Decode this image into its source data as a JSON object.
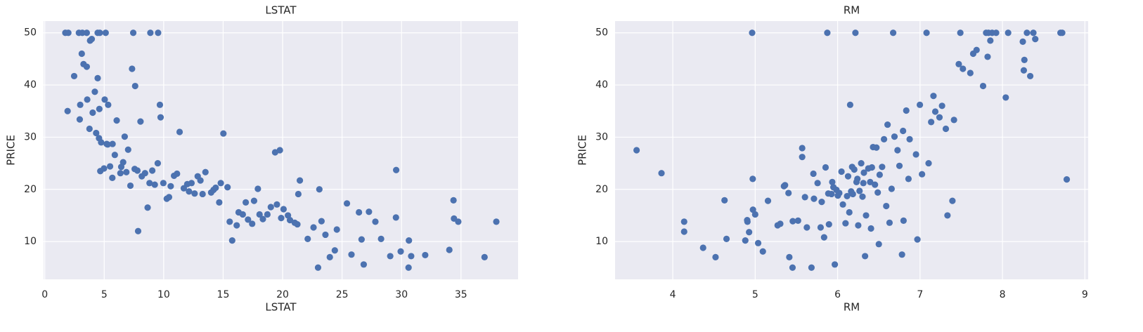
{
  "chart_data": [
    {
      "type": "scatter",
      "title": "LSTAT",
      "x_label": "LSTAT",
      "y_label": "PRICE",
      "color": "#4c72b0",
      "grid": true,
      "xlim": [
        -0.1,
        39.8
      ],
      "ylim": [
        2.75,
        52.25
      ],
      "xticks": [
        0,
        5,
        10,
        15,
        20,
        25,
        30,
        35
      ],
      "yticks": [
        10,
        20,
        30,
        40,
        50
      ],
      "x": [
        1.73,
        1.98,
        2.87,
        3.16,
        3.53,
        4.63,
        4.45,
        5.12,
        7.44,
        8.88,
        9.53,
        1.92,
        2.47,
        2.94,
        2.98,
        3.11,
        3.26,
        3.53,
        3.57,
        3.76,
        3.81,
        3.95,
        4.03,
        4.21,
        4.32,
        4.45,
        4.56,
        4.59,
        4.67,
        4.74,
        4.98,
        5.04,
        5.21,
        5.29,
        5.33,
        5.49,
        5.68,
        5.7,
        5.89,
        6.05,
        6.36,
        6.43,
        6.59,
        6.72,
        6.86,
        7.01,
        7.2,
        7.34,
        7.56,
        7.6,
        7.79,
        7.85,
        8.05,
        8.16,
        8.43,
        8.65,
        8.81,
        9.04,
        9.25,
        9.5,
        9.68,
        9.74,
        9.97,
        10.26,
        10.45,
        10.59,
        10.87,
        11.12,
        11.34,
        11.69,
        11.98,
        12.13,
        12.34,
        12.6,
        12.86,
        13.09,
        13.27,
        13.51,
        13.99,
        14.19,
        14.37,
        14.67,
        14.8,
        15.02,
        15.37,
        15.55,
        15.76,
        16.14,
        16.3,
        16.65,
        16.9,
        17.09,
        17.44,
        17.6,
        17.92,
        18.06,
        18.34,
        18.72,
        19.01,
        19.37,
        19.52,
        19.77,
        19.88,
        20.08,
        20.45,
        20.62,
        21.02,
        21.24,
        21.32,
        21.45,
        22.11,
        22.6,
        22.98,
        23.09,
        23.27,
        23.6,
        23.97,
        24.39,
        24.56,
        25.41,
        25.79,
        26.42,
        26.64,
        26.82,
        27.26,
        27.8,
        28.28,
        29.05,
        29.53,
        29.55,
        29.93,
        30.59,
        30.62,
        30.81,
        31.99,
        34.02,
        34.37,
        34.41,
        34.77,
        36.98,
        37.97
      ],
      "values": [
        50,
        50,
        50,
        50,
        50,
        50,
        50,
        50,
        50,
        50,
        50,
        35,
        41.7,
        33.4,
        36.2,
        46,
        44,
        43.5,
        37.2,
        31.6,
        48.5,
        48.8,
        34.7,
        38.7,
        30.8,
        41.3,
        29.8,
        35.4,
        23.5,
        29,
        24,
        37.2,
        28.7,
        28.6,
        36.2,
        24.4,
        22.2,
        28.7,
        26.6,
        33.2,
        23.1,
        24.3,
        25.2,
        30.1,
        23.3,
        27.6,
        20.7,
        43.1,
        23.9,
        39.8,
        23.6,
        12,
        33,
        22.5,
        23.1,
        16.5,
        21.2,
        23.6,
        20.9,
        25,
        36.2,
        33.8,
        21.2,
        18.2,
        18.5,
        20.6,
        22.6,
        23,
        31,
        20.2,
        21,
        19.6,
        21.2,
        19.2,
        22.5,
        21.7,
        19.1,
        23.3,
        19.4,
        19.9,
        20.3,
        17.5,
        21.2,
        30.7,
        20.4,
        13.8,
        10.2,
        13.1,
        15.6,
        15.2,
        17.5,
        14.2,
        13.4,
        17.8,
        20.1,
        15.2,
        14.3,
        15.2,
        16.6,
        27.1,
        17.1,
        27.5,
        14.5,
        16.2,
        15,
        14.1,
        13.6,
        13.3,
        19.1,
        21.7,
        10.5,
        12.7,
        5,
        20,
        13.9,
        11.3,
        7,
        8.3,
        12.3,
        17.3,
        7.5,
        15.6,
        10.4,
        5.6,
        15.7,
        13.8,
        10.5,
        7.2,
        14.6,
        23.7,
        8.1,
        5,
        10.2,
        7.2,
        7.4,
        8.4,
        17.9,
        14.4,
        13.8,
        7,
        13.8
      ]
    },
    {
      "type": "scatter",
      "title": "RM",
      "x_label": "RM",
      "y_label": "PRICE",
      "color": "#4c72b0",
      "grid": true,
      "xlim": [
        3.3,
        9.04
      ],
      "ylim": [
        2.75,
        52.25
      ],
      "xticks": [
        4,
        5,
        6,
        7,
        8,
        9
      ],
      "yticks": [
        10,
        20,
        30,
        40,
        50
      ],
      "x": [
        3.561,
        3.863,
        4.138,
        4.138,
        4.368,
        4.519,
        4.628,
        4.652,
        4.88,
        4.903,
        4.906,
        4.926,
        4.963,
        4.97,
        4.973,
        5.0,
        5.036,
        5.093,
        5.155,
        5.272,
        5.304,
        5.349,
        5.362,
        5.404,
        5.414,
        5.453,
        5.456,
        5.52,
        5.57,
        5.57,
        5.604,
        5.627,
        5.683,
        5.706,
        5.713,
        5.757,
        5.794,
        5.807,
        5.836,
        5.854,
        5.875,
        5.887,
        5.895,
        5.926,
        5.935,
        5.949,
        5.966,
        5.986,
        6.003,
        6.02,
        6.047,
        6.064,
        6.096,
        6.115,
        6.127,
        6.142,
        6.152,
        6.164,
        6.176,
        6.185,
        6.202,
        6.216,
        6.229,
        6.24,
        6.25,
        6.266,
        6.286,
        6.302,
        6.312,
        6.319,
        6.333,
        6.345,
        6.372,
        6.395,
        6.405,
        6.416,
        6.43,
        6.453,
        6.471,
        6.487,
        6.5,
        6.51,
        6.54,
        6.563,
        6.59,
        6.606,
        6.63,
        6.655,
        6.674,
        6.69,
        6.727,
        6.75,
        6.781,
        6.794,
        6.8,
        6.833,
        6.86,
        6.874,
        6.951,
        6.968,
        6.998,
        7.024,
        7.079,
        7.104,
        7.135,
        7.163,
        7.185,
        7.236,
        7.267,
        7.313,
        7.333,
        7.393,
        7.412,
        7.47,
        7.489,
        7.52,
        7.61,
        7.645,
        7.686,
        7.765,
        7.802,
        7.82,
        7.831,
        7.853,
        7.875,
        7.923,
        8.04,
        8.069,
        8.247,
        8.259,
        8.266,
        8.297,
        8.337,
        8.375,
        8.398,
        8.704,
        8.725,
        8.78
      ],
      "values": [
        27.5,
        23.1,
        13.8,
        11.9,
        8.8,
        7,
        17.9,
        10.5,
        10.2,
        14.1,
        13.8,
        11.8,
        50,
        22,
        16.1,
        15.2,
        9.7,
        8.1,
        17.8,
        13.1,
        13.4,
        20.6,
        20.8,
        19.3,
        7,
        5,
        13.9,
        14,
        27.9,
        26.2,
        18.5,
        12.7,
        5,
        23,
        18.2,
        21.2,
        12.7,
        17.6,
        10.8,
        24.2,
        50,
        19.2,
        13.3,
        19.1,
        21.4,
        20.4,
        5.6,
        19.9,
        18.8,
        19.3,
        23.4,
        17.1,
        13.5,
        18.7,
        22.5,
        15.6,
        36.2,
        19.6,
        24.3,
        19.1,
        23.8,
        50,
        21.4,
        22,
        13.1,
        19.7,
        25,
        18.6,
        21.2,
        23.2,
        7.2,
        15,
        24,
        21.4,
        12.5,
        24.2,
        28.1,
        20.9,
        28,
        19.4,
        9.5,
        22.8,
        24.3,
        29.6,
        16.8,
        32.4,
        13.6,
        20.1,
        50,
        30.1,
        27.5,
        24.5,
        7.5,
        31.2,
        14,
        35.1,
        22,
        29.6,
        26.7,
        10.4,
        36.2,
        22.9,
        50,
        25,
        32.9,
        37.9,
        34.9,
        33.8,
        36,
        31.6,
        15,
        17.8,
        33.3,
        44,
        50,
        43.1,
        42.3,
        46,
        46.7,
        39.8,
        50,
        45.4,
        50,
        48.5,
        50,
        50,
        37.6,
        50,
        48.3,
        42.8,
        44.8,
        50,
        41.7,
        50,
        48.8,
        50,
        50,
        21.9
      ]
    }
  ]
}
